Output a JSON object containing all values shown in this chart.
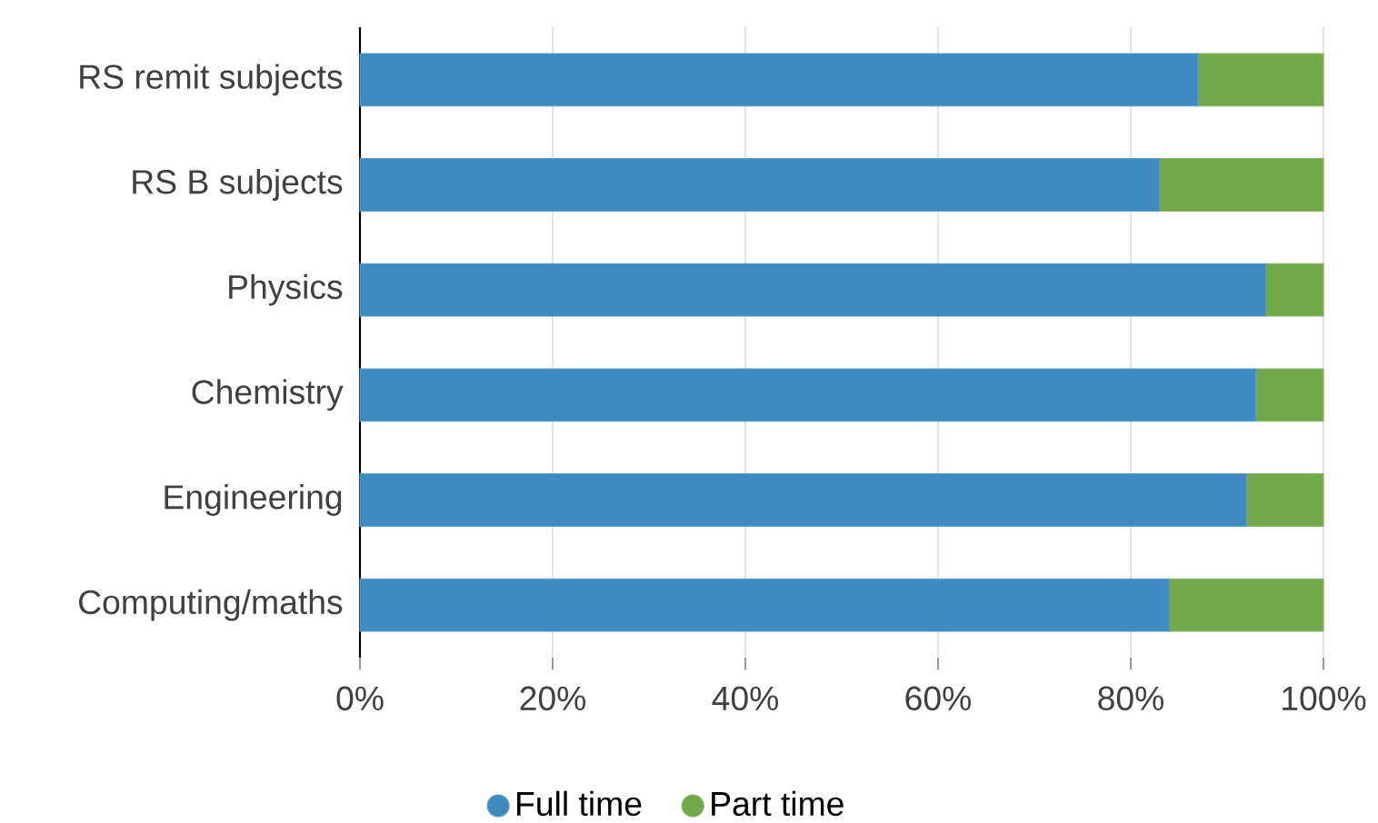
{
  "chart_data": {
    "type": "bar",
    "orientation": "horizontal",
    "stacked": true,
    "categories": [
      "RS remit subjects",
      "RS B subjects",
      "Physics",
      "Chemistry",
      "Engineering",
      "Computing/maths"
    ],
    "series": [
      {
        "name": "Full time",
        "color": "#3f8bc0",
        "values": [
          87,
          83,
          94,
          93,
          92,
          84
        ]
      },
      {
        "name": "Part time",
        "color": "#70a84a",
        "values": [
          13,
          17,
          6,
          7,
          8,
          16
        ]
      }
    ],
    "xlim": [
      0,
      100
    ],
    "xticks": [
      {
        "value": 0,
        "label": "0%"
      },
      {
        "value": 20,
        "label": "20%"
      },
      {
        "value": 40,
        "label": "40%"
      },
      {
        "value": 60,
        "label": "60%"
      },
      {
        "value": 80,
        "label": "80%"
      },
      {
        "value": 100,
        "label": "100%"
      }
    ],
    "grid": "x",
    "legend": "bottom",
    "marker": "circle"
  }
}
